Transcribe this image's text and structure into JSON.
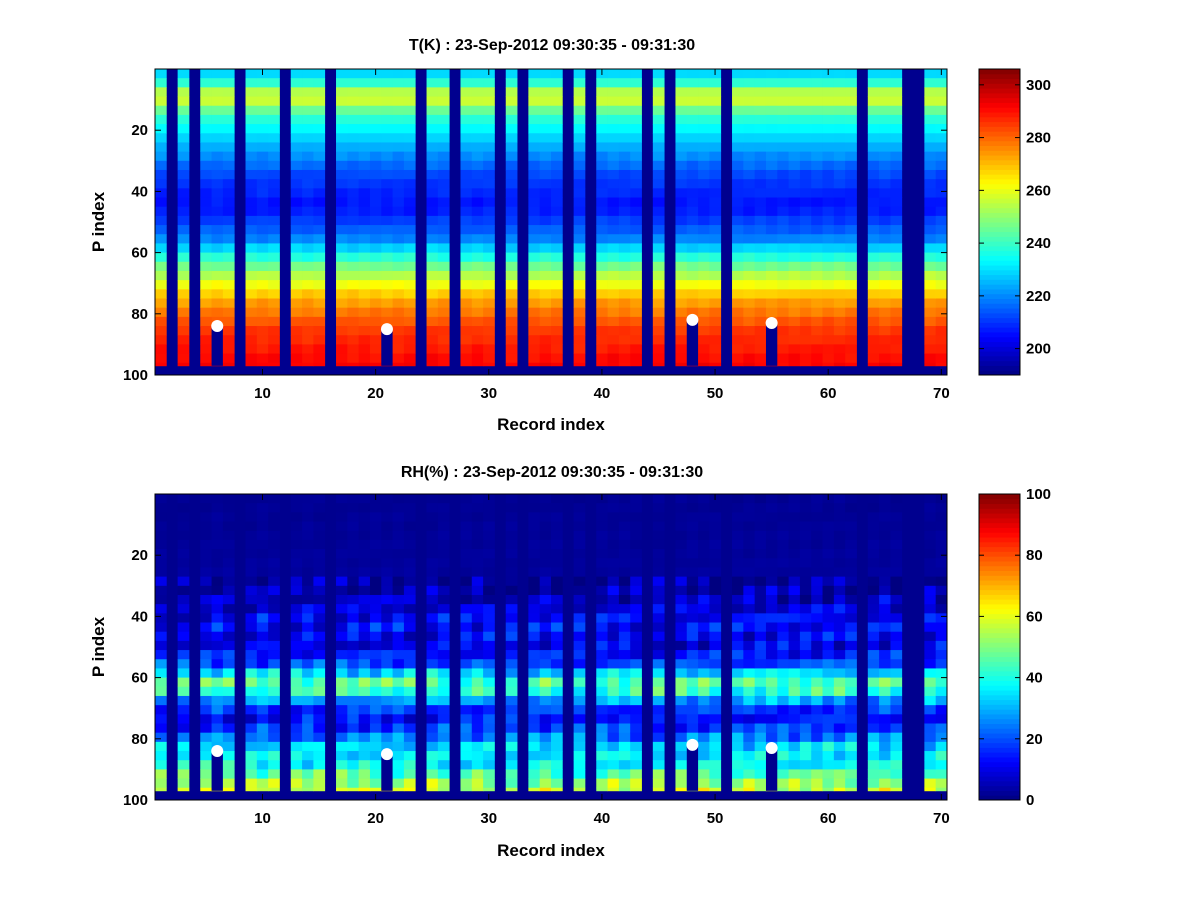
{
  "chart_data": [
    {
      "type": "heatmap",
      "title": "T(K) : 23-Sep-2012 09:30:35 - 09:31:30",
      "xlabel": "Record index",
      "ylabel": "P index",
      "xlim": [
        0.5,
        70.5
      ],
      "ylim": [
        100,
        0
      ],
      "xticks": [
        "10",
        "20",
        "30",
        "40",
        "50",
        "60",
        "70"
      ],
      "yticks": [
        "20",
        "40",
        "60",
        "80",
        "100"
      ],
      "colorbar": {
        "min": 190,
        "max": 306,
        "ticks": [
          "200",
          "220",
          "240",
          "260",
          "280",
          "300"
        ]
      },
      "colormap": "jet",
      "missing_records": [
        2,
        4,
        8,
        12,
        16,
        24,
        27,
        31,
        33,
        37,
        39,
        44,
        46,
        51,
        63,
        67,
        68
      ],
      "profile_end_p": 97,
      "markers": [
        {
          "x": 6,
          "y": 84
        },
        {
          "x": 21,
          "y": 85
        },
        {
          "x": 48,
          "y": 82
        },
        {
          "x": 55,
          "y": 83
        }
      ],
      "profile_keypoints": {
        "p": [
          1,
          4,
          9,
          15,
          25,
          35,
          45,
          55,
          65,
          75,
          85,
          97
        ],
        "value": [
          228,
          236,
          262,
          240,
          225,
          212,
          206,
          218,
          248,
          272,
          285,
          292
        ]
      }
    },
    {
      "type": "heatmap",
      "title": "RH(%) : 23-Sep-2012 09:30:35 - 09:31:30",
      "xlabel": "Record index",
      "ylabel": "P index",
      "xlim": [
        0.5,
        70.5
      ],
      "ylim": [
        100,
        0
      ],
      "xticks": [
        "10",
        "20",
        "30",
        "40",
        "50",
        "60",
        "70"
      ],
      "yticks": [
        "20",
        "40",
        "60",
        "80",
        "100"
      ],
      "colorbar": {
        "min": 0,
        "max": 100,
        "ticks": [
          "0",
          "20",
          "40",
          "60",
          "80",
          "100"
        ]
      },
      "colormap": "jet",
      "missing_records": [
        2,
        4,
        8,
        12,
        16,
        24,
        27,
        31,
        33,
        37,
        39,
        44,
        46,
        51,
        63,
        67,
        68
      ],
      "profile_end_p": 97,
      "markers": [
        {
          "x": 6,
          "y": 84
        },
        {
          "x": 21,
          "y": 85
        },
        {
          "x": 48,
          "y": 82
        },
        {
          "x": 55,
          "y": 83
        }
      ],
      "profile_keypoints": {
        "p": [
          1,
          30,
          36,
          42,
          50,
          56,
          60,
          63,
          67,
          72,
          78,
          83,
          88,
          93,
          97
        ],
        "value": [
          2,
          3,
          8,
          14,
          10,
          20,
          42,
          50,
          30,
          12,
          20,
          35,
          36,
          50,
          58
        ]
      }
    }
  ]
}
